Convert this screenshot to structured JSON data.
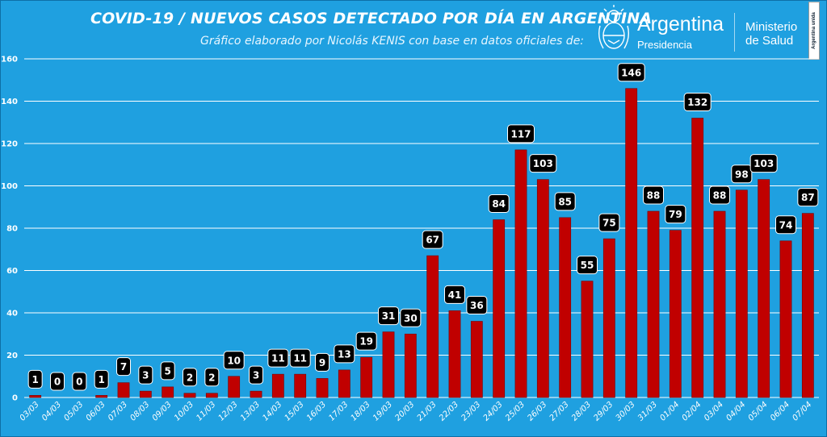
{
  "header": {
    "title": "COVID-19  /  NUEVOS CASOS DETECTADO POR DÍA EN ARGENTINA",
    "subtitle": "Gráfico elaborado por Nicolás KENIS con base en datos oficiales de:"
  },
  "logo": {
    "shield_icon": "argentina-coat-of-arms-icon",
    "name": "Argentina",
    "sub": "Presidencia",
    "ministry_line1": "Ministerio",
    "ministry_line2": "de Salud",
    "tag": "Argentina unida"
  },
  "colors": {
    "background": "#1fa0e0",
    "bar": "#c00000",
    "bar_border": "#7a0000",
    "label_box": "#000000",
    "grid": "#ffffff"
  },
  "chart_data": {
    "type": "bar",
    "categories": [
      "03/03",
      "04/03",
      "05/03",
      "06/03",
      "07/03",
      "08/03",
      "09/03",
      "10/03",
      "11/03",
      "12/03",
      "13/03",
      "14/03",
      "15/03",
      "16/03",
      "17/03",
      "18/03",
      "19/03",
      "20/03",
      "21/03",
      "22/03",
      "23/03",
      "24/03",
      "25/03",
      "26/03",
      "27/03",
      "28/03",
      "29/03",
      "30/03",
      "31/03",
      "01/04",
      "02/04",
      "03/04",
      "04/04",
      "05/04",
      "06/04",
      "07/04"
    ],
    "values": [
      1,
      0,
      0,
      1,
      7,
      3,
      5,
      2,
      2,
      10,
      3,
      11,
      11,
      9,
      13,
      19,
      31,
      30,
      67,
      41,
      36,
      84,
      117,
      103,
      85,
      55,
      75,
      146,
      88,
      79,
      132,
      88,
      98,
      103,
      74,
      87
    ],
    "yticks": [
      0,
      20,
      40,
      60,
      80,
      100,
      120,
      140,
      160
    ],
    "ylim": [
      0,
      160
    ],
    "grid": true,
    "data_labels": true,
    "legend": "none"
  }
}
